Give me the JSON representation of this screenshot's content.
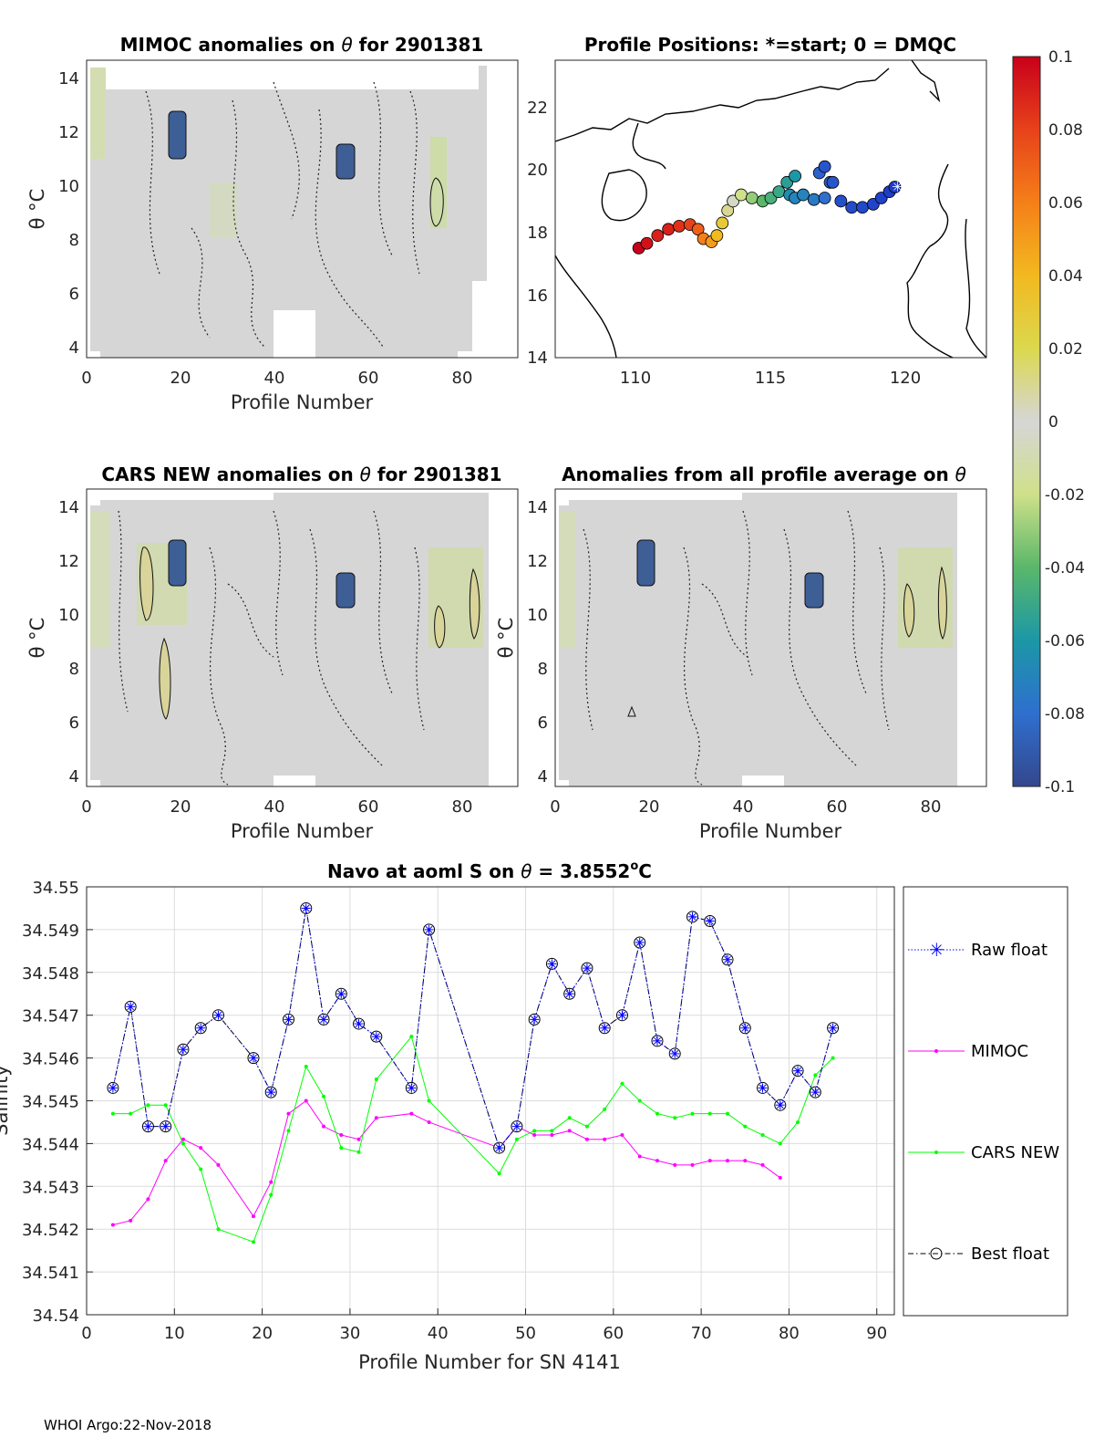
{
  "figure": {
    "footer": "WHOI Argo:22-Nov-2018",
    "colorbar": {
      "ticks": [
        "0.1",
        "0.08",
        "0.06",
        "0.04",
        "0.02",
        "0",
        "-0.02",
        "-0.04",
        "-0.06",
        "-0.08",
        "-0.1"
      ],
      "range": [
        -0.1,
        0.1
      ]
    },
    "panels": {
      "mimoc": {
        "title_pre": "MIMOC anomalies on ",
        "title_sym": "θ",
        "title_post": "  for 2901381",
        "ylabel": "θ °C",
        "xlabel": "Profile Number",
        "xticks": [
          "0",
          "20",
          "40",
          "60",
          "80"
        ],
        "yticks": [
          "4",
          "6",
          "8",
          "10",
          "12",
          "14"
        ]
      },
      "positions": {
        "title": "Profile Positions: *=start; 0 = DMQC",
        "xticks": [
          "110",
          "115",
          "120"
        ],
        "yticks": [
          "14",
          "16",
          "18",
          "20",
          "22"
        ]
      },
      "cars": {
        "title_pre": "CARS NEW anomalies on ",
        "title_sym": "θ",
        "title_post": " for 2901381",
        "ylabel": "θ °C",
        "xlabel": "Profile Number",
        "xticks": [
          "0",
          "20",
          "40",
          "60",
          "80"
        ],
        "yticks": [
          "4",
          "6",
          "8",
          "10",
          "12",
          "14"
        ]
      },
      "avg": {
        "title_pre": "Anomalies from all profile average on ",
        "title_sym": "θ",
        "ylabel": "θ °C",
        "xlabel": "Profile Number",
        "xticks": [
          "0",
          "20",
          "40",
          "60",
          "80"
        ],
        "yticks": [
          "4",
          "6",
          "8",
          "10",
          "12",
          "14"
        ]
      }
    }
  },
  "chart_data": {
    "type": "line",
    "title_pre": "Navo at aoml S on ",
    "title_sym": "θ",
    "title_post": " = 3.8552",
    "title_unit": "o",
    "title_unit_tail": "C",
    "xlabel": "Profile Number for SN 4141",
    "ylabel": "Salinity",
    "xlim": [
      0,
      92
    ],
    "ylim": [
      34.54,
      34.55
    ],
    "xticks": [
      "0",
      "10",
      "20",
      "30",
      "40",
      "50",
      "60",
      "70",
      "80",
      "90"
    ],
    "yticks": [
      "34.54",
      "34.541",
      "34.542",
      "34.543",
      "34.544",
      "34.545",
      "34.546",
      "34.547",
      "34.548",
      "34.549",
      "34.55"
    ],
    "legend": [
      "Raw float",
      "MIMOC",
      "CARS NEW",
      "Best float"
    ],
    "series": [
      {
        "name": "Raw float",
        "color": "#0000ff",
        "x": [
          3,
          5,
          7,
          9,
          11,
          13,
          15,
          19,
          21,
          23,
          25,
          27,
          29,
          31,
          33,
          37,
          39,
          47,
          49,
          51,
          53,
          55,
          57,
          59,
          61,
          63,
          65,
          67,
          69,
          71,
          73,
          75,
          77,
          79,
          81,
          83,
          85
        ],
        "y": [
          34.5453,
          34.5472,
          34.5444,
          34.5444,
          34.5462,
          34.5467,
          34.547,
          34.546,
          34.5452,
          34.5469,
          34.5495,
          34.5469,
          34.5475,
          34.5468,
          34.5465,
          34.5453,
          34.549,
          34.5439,
          34.5444,
          34.5469,
          34.5482,
          34.5475,
          34.5481,
          34.5467,
          34.547,
          34.5487,
          34.5464,
          34.5461,
          34.5493,
          34.5492,
          34.5483,
          34.5467,
          34.5453,
          34.5449,
          34.5457,
          34.5452,
          34.5467
        ]
      },
      {
        "name": "MIMOC",
        "color": "#ff00ff",
        "x": [
          3,
          5,
          7,
          9,
          11,
          13,
          15,
          19,
          21,
          23,
          25,
          27,
          29,
          31,
          33,
          37,
          39,
          47,
          49,
          51,
          53,
          55,
          57,
          59,
          61,
          63,
          65,
          67,
          69,
          71,
          73,
          75,
          77,
          79
        ],
        "y": [
          34.5421,
          34.5422,
          34.5427,
          34.5436,
          34.5441,
          34.5439,
          34.5435,
          34.5423,
          34.5431,
          34.5447,
          34.545,
          34.5444,
          34.5442,
          34.5441,
          34.5446,
          34.5447,
          34.5445,
          34.5439,
          34.5444,
          34.5442,
          34.5442,
          34.5443,
          34.5441,
          34.5441,
          34.5442,
          34.5437,
          34.5436,
          34.5435,
          34.5435,
          34.5436,
          34.5436,
          34.5436,
          34.5435,
          34.5432
        ]
      },
      {
        "name": "CARS NEW",
        "color": "#00ff00",
        "x": [
          3,
          5,
          7,
          9,
          11,
          13,
          15,
          19,
          21,
          23,
          25,
          27,
          29,
          31,
          33,
          37,
          39,
          47,
          49,
          51,
          53,
          55,
          57,
          59,
          61,
          63,
          65,
          67,
          69,
          71,
          73,
          75,
          77,
          79,
          81,
          83,
          85
        ],
        "y": [
          34.5447,
          34.5447,
          34.5449,
          34.5449,
          34.544,
          34.5434,
          34.542,
          34.5417,
          34.5428,
          34.5443,
          34.5458,
          34.5451,
          34.5439,
          34.5438,
          34.5455,
          34.5465,
          34.545,
          34.5433,
          34.5441,
          34.5443,
          34.5443,
          34.5446,
          34.5444,
          34.5448,
          34.5454,
          34.545,
          34.5447,
          34.5446,
          34.5447,
          34.5447,
          34.5447,
          34.5444,
          34.5442,
          34.544,
          34.5445,
          34.5456,
          34.546
        ]
      },
      {
        "name": "Best float",
        "color": "#000000",
        "x": [
          3,
          5,
          7,
          9,
          11,
          13,
          15,
          19,
          21,
          23,
          25,
          27,
          29,
          31,
          33,
          37,
          39,
          47,
          49,
          51,
          53,
          55,
          57,
          59,
          61,
          63,
          65,
          67,
          69,
          71,
          73,
          75,
          77,
          79,
          81,
          83,
          85
        ],
        "y": [
          34.5453,
          34.5472,
          34.5444,
          34.5444,
          34.5462,
          34.5467,
          34.547,
          34.546,
          34.5452,
          34.5469,
          34.5495,
          34.5469,
          34.5475,
          34.5468,
          34.5465,
          34.5453,
          34.549,
          34.5439,
          34.5444,
          34.5469,
          34.5482,
          34.5475,
          34.5481,
          34.5467,
          34.547,
          34.5487,
          34.5464,
          34.5461,
          34.5493,
          34.5492,
          34.5483,
          34.5467,
          34.5453,
          34.5449,
          34.5457,
          34.5452,
          34.5467
        ]
      }
    ],
    "track": {
      "xlim": [
        107,
        123
      ],
      "ylim": [
        14,
        23.5
      ],
      "lon": [
        110.1,
        110.4,
        110.8,
        111.2,
        111.6,
        112.0,
        112.3,
        112.5,
        112.8,
        113.0,
        113.2,
        113.4,
        113.6,
        113.9,
        114.3,
        114.7,
        115.0,
        115.3,
        115.6,
        115.9,
        115.7,
        115.9,
        116.2,
        116.6,
        117.0,
        117.2,
        116.8,
        117.0,
        117.3,
        117.6,
        118.0,
        118.4,
        118.8,
        119.1,
        119.4,
        119.6
      ],
      "lat": [
        17.5,
        17.65,
        17.9,
        18.1,
        18.2,
        18.25,
        18.1,
        17.8,
        17.7,
        17.9,
        18.3,
        18.7,
        19.0,
        19.2,
        19.1,
        19.0,
        19.1,
        19.3,
        19.6,
        19.8,
        19.2,
        19.1,
        19.2,
        19.05,
        19.1,
        19.6,
        19.9,
        20.1,
        19.6,
        19.0,
        18.8,
        18.8,
        18.9,
        19.1,
        19.3,
        19.45
      ],
      "anom": [
        0.1,
        0.095,
        0.09,
        0.09,
        0.085,
        0.08,
        0.07,
        0.06,
        0.05,
        0.04,
        0.03,
        0.01,
        -0.005,
        -0.02,
        -0.03,
        -0.04,
        -0.045,
        -0.05,
        -0.055,
        -0.06,
        -0.065,
        -0.07,
        -0.07,
        -0.075,
        -0.08,
        -0.085,
        -0.085,
        -0.09,
        -0.09,
        -0.092,
        -0.094,
        -0.095,
        -0.097,
        -0.098,
        -0.099,
        -0.1
      ]
    }
  }
}
